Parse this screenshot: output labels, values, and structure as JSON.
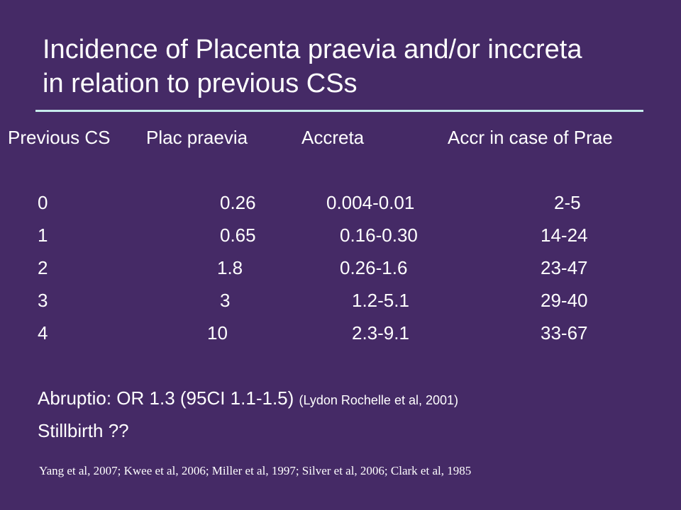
{
  "title": {
    "line1": "Incidence of Placenta praevia and/or inccreta",
    "line2": "in relation to previous CSs"
  },
  "table": {
    "headers": [
      "Previous CS",
      "Plac praevia",
      "Accreta",
      "Accr in case of Prae"
    ],
    "rows": [
      [
        "0",
        "0.26",
        "0.004-0.01",
        "2-5"
      ],
      [
        "1",
        "0.65",
        "0.16-0.30",
        "14-24"
      ],
      [
        "2",
        "1.8",
        "0.26-1.6",
        "23-47"
      ],
      [
        "3",
        "3",
        "1.2-5.1",
        "29-40"
      ],
      [
        "4",
        "10",
        "2.3-9.1",
        "33-67"
      ]
    ]
  },
  "notes": {
    "abruptio": "Abruptio: OR 1.3 (95CI 1.1-1.5)",
    "abruptio_cite": "(Lydon Rochelle et al, 2001)",
    "stillbirth": "Stillbirth ??"
  },
  "references": "Yang et al, 2007; Kwee et al, 2006; Miller et al, 1997; Silver et al, 2006; Clark et al, 1985"
}
